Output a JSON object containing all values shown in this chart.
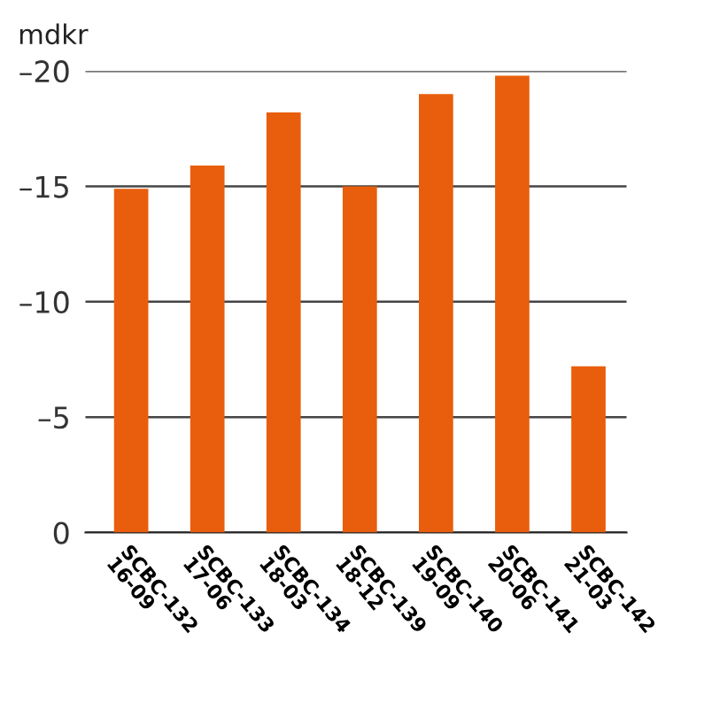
{
  "chart_data": {
    "type": "bar",
    "ylabel": "mdkr",
    "categories": [
      "SCBC-132\n16-09",
      "SCBC-133\n17-06",
      "SCBC-134\n18-03",
      "SCBC-139\n18-12",
      "SCBC-140\n19-09",
      "SCBC-141\n20-06",
      "SCBC-142\n21-03"
    ],
    "series": [
      {
        "color": "#e95e0c",
        "values": [
          -14.9,
          -15.9,
          -18.2,
          -15.0,
          -19.0,
          -19.8,
          -7.2
        ]
      }
    ],
    "ylim": [
      0,
      -20
    ],
    "yticks": [
      0,
      {
        "value": -5,
        "label": "–5"
      },
      {
        "value": -10,
        "label": "–10"
      },
      {
        "value": -15,
        "label": "–15"
      },
      {
        "value": -20,
        "label": "–20"
      }
    ],
    "grid": "y"
  }
}
